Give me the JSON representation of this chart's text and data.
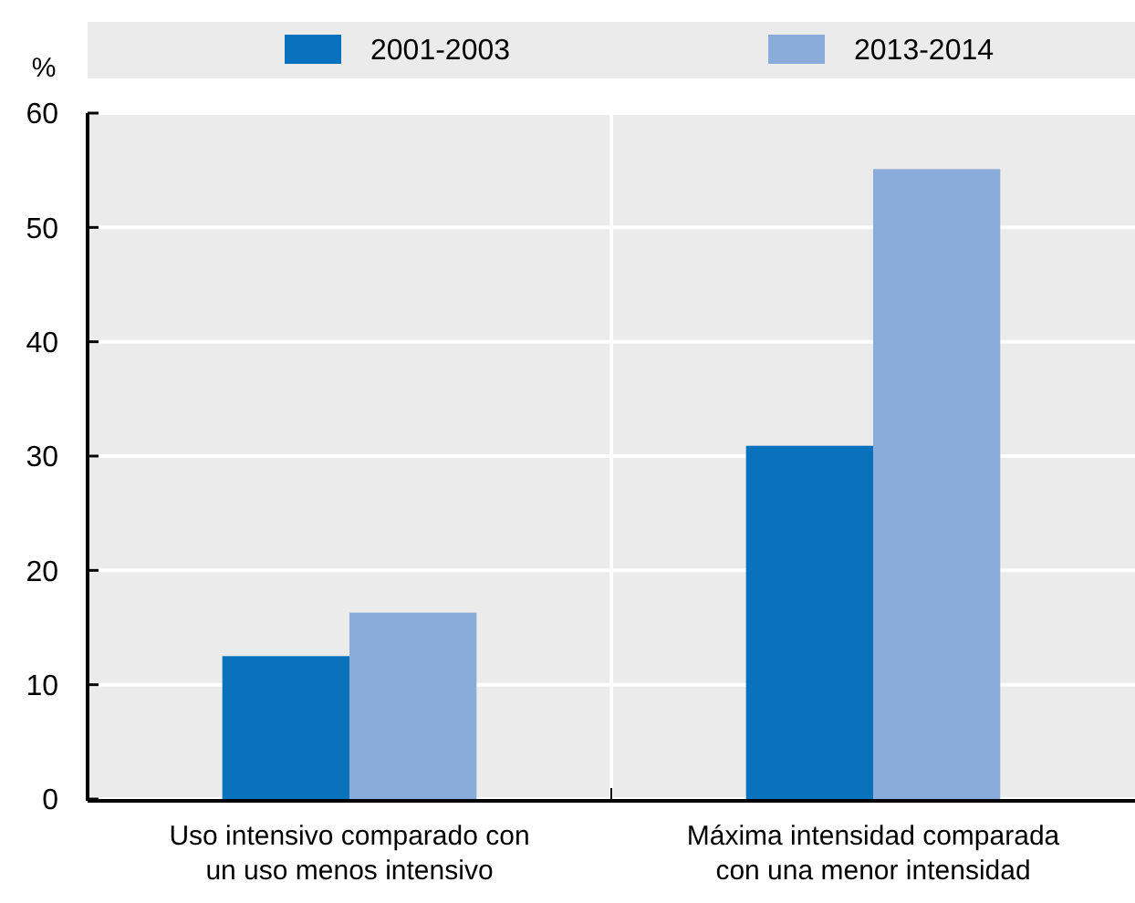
{
  "chart_data": {
    "type": "bar",
    "ylabel": "%",
    "categories": [
      "Uso intensivo comparado con un uso menos intensivo",
      "Máxima intensidad comparada con una menor intensidad"
    ],
    "series": [
      {
        "name": "2001-2003",
        "color": "#0872bd",
        "values": [
          12.5,
          30.9
        ]
      },
      {
        "name": "2013-2014",
        "color": "#8aacdb",
        "values": [
          16.3,
          55.1
        ]
      }
    ],
    "ylim": [
      0,
      60
    ],
    "yticks": [
      0,
      10,
      20,
      30,
      40,
      50,
      60
    ],
    "grid": "y",
    "legend": "top"
  }
}
